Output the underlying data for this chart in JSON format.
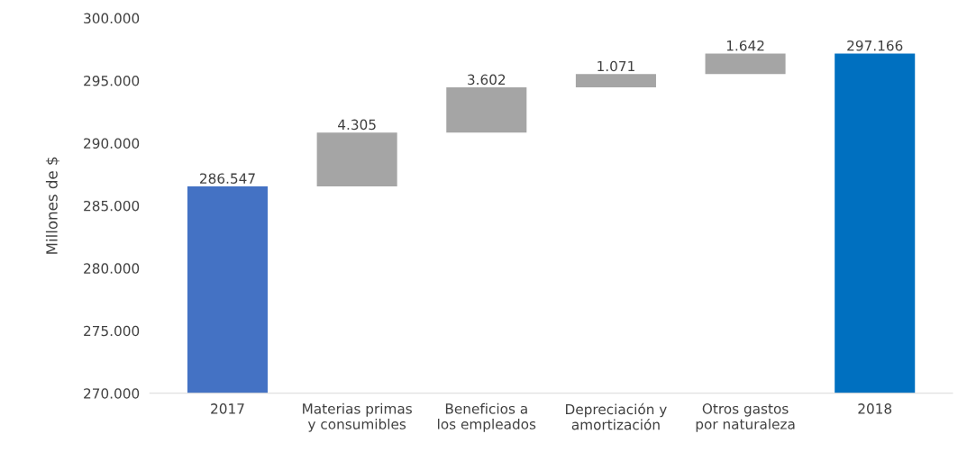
{
  "chart_data": {
    "type": "bar",
    "ylabel": "Millones de $",
    "categories": [
      "2017",
      "Materias primas\ny consumibles",
      "Beneficios a\nlos empleados",
      "Depreciación y\namortización",
      "Otros gastos\npor naturaleza",
      "2018"
    ],
    "base": [
      270000,
      286547,
      290852,
      294454,
      295525,
      270000
    ],
    "values": [
      16547,
      4305,
      3602,
      1071,
      1642,
      27166
    ],
    "value_labels": [
      "286.547",
      "4.305",
      "3.602",
      "1.071",
      "1.642",
      "297.166"
    ],
    "colors": [
      "#4472c4",
      "#a5a5a5",
      "#a5a5a5",
      "#a5a5a5",
      "#a5a5a5",
      "#0070c0"
    ],
    "ylim": [
      270000,
      300000
    ],
    "yticks": [
      {
        "value": 270000,
        "label": "270.000"
      },
      {
        "value": 275000,
        "label": "275.000"
      },
      {
        "value": 280000,
        "label": "280.000"
      },
      {
        "value": 285000,
        "label": "285.000"
      },
      {
        "value": 290000,
        "label": "290.000"
      },
      {
        "value": 295000,
        "label": "295.000"
      },
      {
        "value": 300000,
        "label": "300.000"
      }
    ],
    "grid": false
  }
}
